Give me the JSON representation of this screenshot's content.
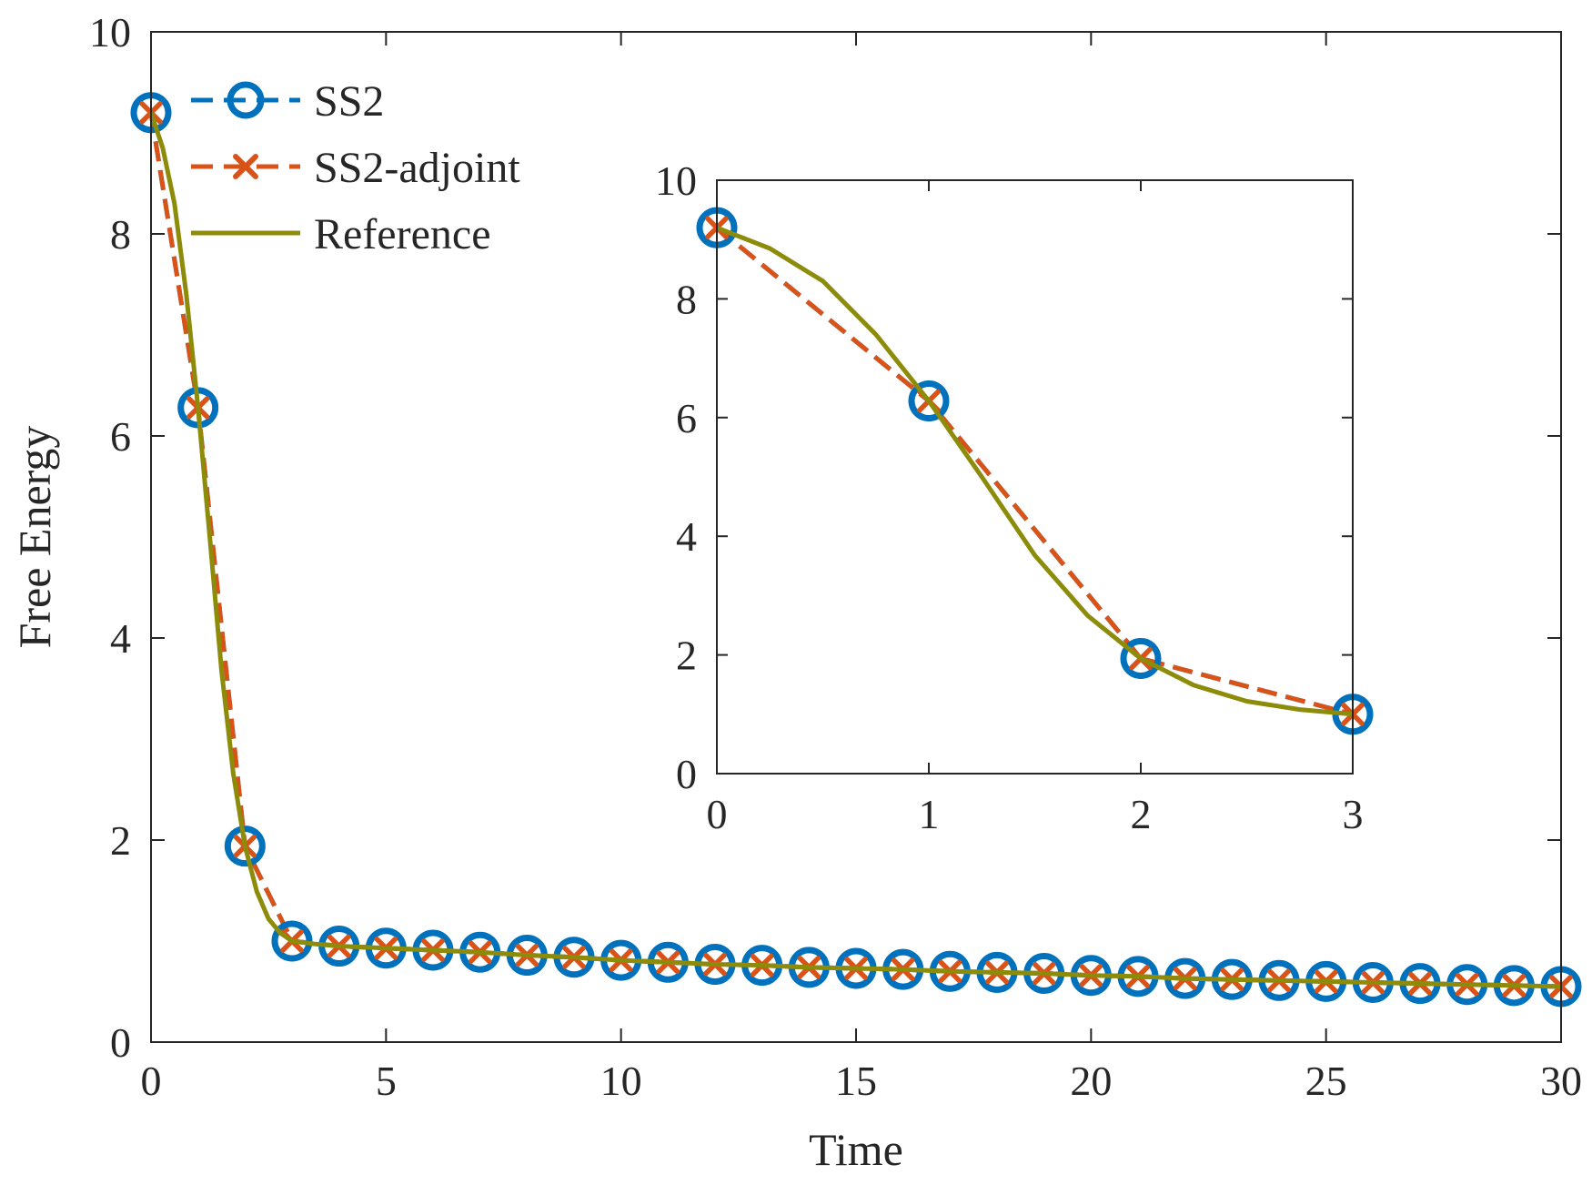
{
  "colors": {
    "ss2": "#0072BD",
    "ss2_adjoint": "#D95319",
    "reference": "#8C8C0A",
    "axis": "#262626"
  },
  "chart_data": [
    {
      "type": "line",
      "role": "main",
      "xlabel": "Time",
      "ylabel": "Free Energy",
      "xlim": [
        0,
        30
      ],
      "ylim": [
        0,
        10
      ],
      "xticks": [
        0,
        5,
        10,
        15,
        20,
        25,
        30
      ],
      "yticks": [
        0,
        2,
        4,
        6,
        8,
        10
      ],
      "xtick_labels": [
        "0",
        "5",
        "10",
        "15",
        "20",
        "25",
        "30"
      ],
      "ytick_labels": [
        "0",
        "2",
        "4",
        "6",
        "8",
        "10"
      ],
      "legend": {
        "position": "top-left",
        "entries": [
          "SS2",
          "SS2-adjoint",
          "Reference"
        ]
      },
      "series": [
        {
          "name": "SS2",
          "style": "dashed-circle",
          "x": [
            0,
            1,
            2,
            3,
            4,
            5,
            6,
            7,
            8,
            9,
            10,
            11,
            12,
            13,
            14,
            15,
            16,
            17,
            18,
            19,
            20,
            21,
            22,
            23,
            24,
            25,
            26,
            27,
            28,
            29,
            30
          ],
          "y": [
            9.2,
            6.28,
            1.94,
            1.0,
            0.95,
            0.93,
            0.91,
            0.89,
            0.86,
            0.84,
            0.81,
            0.79,
            0.77,
            0.76,
            0.74,
            0.73,
            0.72,
            0.7,
            0.69,
            0.68,
            0.66,
            0.65,
            0.63,
            0.62,
            0.61,
            0.6,
            0.59,
            0.58,
            0.57,
            0.56,
            0.55
          ]
        },
        {
          "name": "SS2-adjoint",
          "style": "dashed-x",
          "x": [
            0,
            1,
            2,
            3,
            4,
            5,
            6,
            7,
            8,
            9,
            10,
            11,
            12,
            13,
            14,
            15,
            16,
            17,
            18,
            19,
            20,
            21,
            22,
            23,
            24,
            25,
            26,
            27,
            28,
            29,
            30
          ],
          "y": [
            9.2,
            6.28,
            1.94,
            1.0,
            0.95,
            0.93,
            0.91,
            0.89,
            0.86,
            0.84,
            0.81,
            0.79,
            0.77,
            0.76,
            0.74,
            0.73,
            0.72,
            0.7,
            0.69,
            0.68,
            0.66,
            0.65,
            0.63,
            0.62,
            0.61,
            0.6,
            0.59,
            0.58,
            0.57,
            0.56,
            0.55
          ]
        },
        {
          "name": "Reference",
          "style": "solid",
          "x": [
            0,
            0.25,
            0.5,
            0.75,
            1.0,
            1.25,
            1.5,
            1.75,
            2.0,
            2.25,
            2.5,
            2.75,
            3.0,
            3.5,
            4,
            5,
            6,
            7,
            8,
            9,
            10,
            11,
            12,
            13,
            14,
            15,
            16,
            17,
            18,
            19,
            20,
            21,
            22,
            23,
            24,
            25,
            26,
            27,
            28,
            29,
            30
          ],
          "y": [
            9.2,
            8.85,
            8.3,
            7.4,
            6.28,
            5.0,
            3.68,
            2.66,
            1.94,
            1.49,
            1.22,
            1.08,
            1.0,
            0.97,
            0.95,
            0.93,
            0.91,
            0.89,
            0.86,
            0.84,
            0.81,
            0.79,
            0.77,
            0.76,
            0.74,
            0.73,
            0.72,
            0.7,
            0.69,
            0.68,
            0.66,
            0.65,
            0.63,
            0.62,
            0.61,
            0.6,
            0.59,
            0.58,
            0.57,
            0.56,
            0.55
          ]
        }
      ]
    },
    {
      "type": "line",
      "role": "inset",
      "xlim": [
        0,
        3
      ],
      "ylim": [
        0,
        10
      ],
      "xticks": [
        0,
        1,
        2,
        3
      ],
      "yticks": [
        0,
        2,
        4,
        6,
        8,
        10
      ],
      "xtick_labels": [
        "0",
        "1",
        "2",
        "3"
      ],
      "ytick_labels": [
        "0",
        "2",
        "4",
        "6",
        "8",
        "10"
      ],
      "series": [
        {
          "name": "SS2",
          "style": "dashed-circle",
          "x": [
            0,
            1,
            2,
            3
          ],
          "y": [
            9.2,
            6.28,
            1.94,
            1.0
          ]
        },
        {
          "name": "SS2-adjoint",
          "style": "dashed-x",
          "x": [
            0,
            1,
            2,
            3
          ],
          "y": [
            9.2,
            6.28,
            1.94,
            1.0
          ]
        },
        {
          "name": "Reference",
          "style": "solid",
          "x": [
            0,
            0.25,
            0.5,
            0.75,
            1.0,
            1.25,
            1.5,
            1.75,
            2.0,
            2.25,
            2.5,
            2.75,
            3.0
          ],
          "y": [
            9.2,
            8.85,
            8.3,
            7.4,
            6.28,
            5.0,
            3.68,
            2.66,
            1.94,
            1.49,
            1.22,
            1.08,
            1.0
          ]
        }
      ]
    }
  ]
}
